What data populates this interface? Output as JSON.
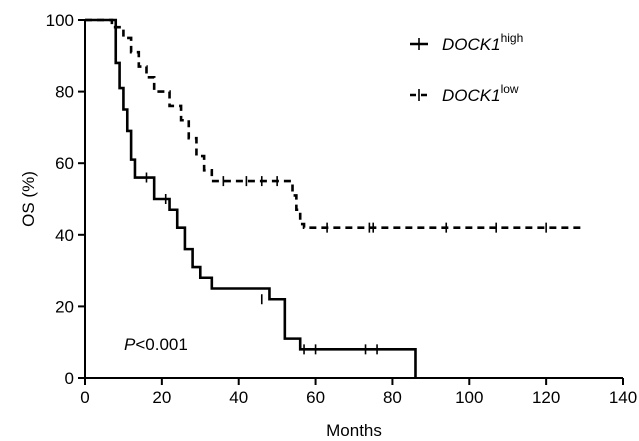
{
  "chart_data": {
    "type": "line",
    "title": "",
    "xlabel": "Months",
    "ylabel": "OS (%)",
    "xlim": [
      0,
      140
    ],
    "ylim": [
      0,
      100
    ],
    "xticks": [
      0,
      20,
      40,
      60,
      80,
      100,
      120,
      140
    ],
    "yticks": [
      0,
      20,
      40,
      60,
      80,
      100
    ],
    "grid": false,
    "legend_position": "top-right",
    "annotation": {
      "p_label": "P",
      "p_value": "<0.001"
    },
    "series": [
      {
        "name_base": "DOCK1",
        "name_sup": "high",
        "line_style": "solid",
        "color": "#000000",
        "x": [
          0,
          7,
          8,
          9,
          10,
          11,
          12,
          13,
          14,
          18,
          22,
          24,
          26,
          28,
          30,
          33,
          44,
          48,
          50,
          52,
          56,
          58,
          86
        ],
        "y": [
          100,
          100,
          88,
          81,
          75,
          69,
          61,
          56,
          56,
          50,
          47,
          42,
          36,
          31,
          28,
          25,
          25,
          22,
          22,
          11,
          8,
          8,
          0
        ],
        "censor_x": [
          16,
          21,
          46,
          57,
          60,
          73,
          76
        ],
        "censor_y": [
          56,
          50,
          22,
          8,
          8,
          8,
          8
        ]
      },
      {
        "name_base": "DOCK1",
        "name_sup": "low",
        "line_style": "dashed",
        "color": "#000000",
        "x": [
          0,
          7,
          10,
          12,
          14,
          16,
          18,
          22,
          25,
          27,
          29,
          31,
          33,
          38,
          54,
          55,
          56,
          57,
          129
        ],
        "y": [
          100,
          98,
          95,
          91,
          87,
          84,
          80,
          76,
          72,
          67,
          62,
          58,
          55,
          55,
          51,
          47,
          43,
          42,
          42
        ],
        "censor_x": [
          36,
          42,
          46,
          50,
          63,
          74,
          75,
          94,
          107,
          120
        ],
        "censor_y": [
          55,
          55,
          55,
          55,
          42,
          42,
          42,
          42,
          42,
          42
        ]
      }
    ]
  }
}
